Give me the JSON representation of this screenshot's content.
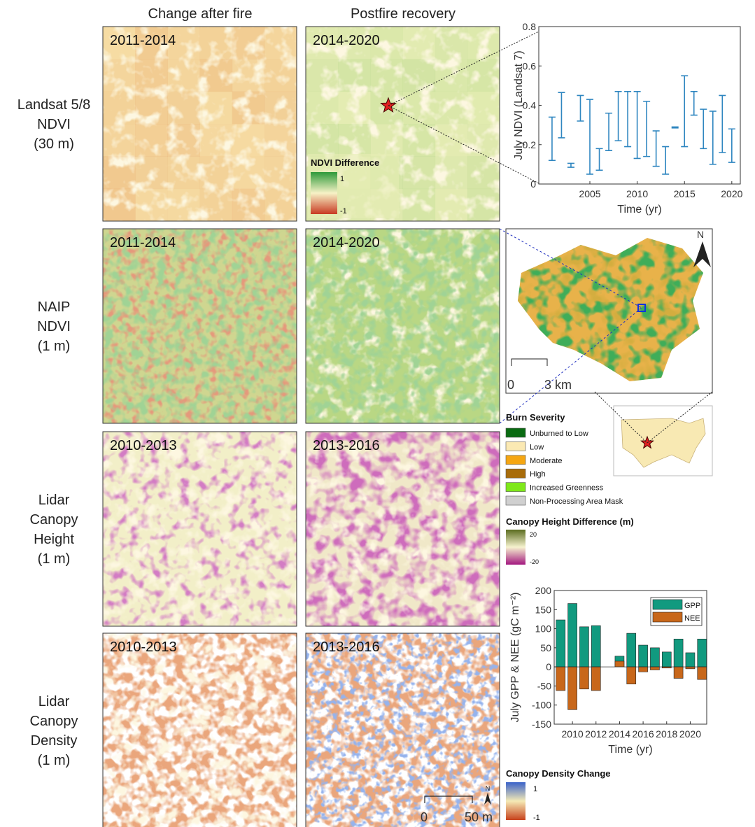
{
  "figure": {
    "column_headers": [
      "Change after fire",
      "Postfire recovery"
    ],
    "row_labels": [
      [
        "Landsat 5/8",
        "NDVI",
        "(30 m)"
      ],
      [
        "NAIP",
        "NDVI",
        "(1 m)"
      ],
      [
        "Lidar",
        "Canopy",
        "Height",
        "(1 m)"
      ],
      [
        "Lidar",
        "Canopy",
        "Density",
        "(1 m)"
      ]
    ],
    "panel_labels": [
      [
        "2011-2014",
        "2014-2020"
      ],
      [
        "2011-2014",
        "2014-2020"
      ],
      [
        "2010-2013",
        "2013-2016"
      ],
      [
        "2010-2013",
        "2013-2016"
      ]
    ],
    "ndvi_legend": {
      "title": "NDVI Difference",
      "max": "1",
      "min": "-1"
    },
    "burn_severity": {
      "title": "Burn Severity",
      "classes": [
        {
          "label": "Unburned to Low",
          "color": "#0a6b12"
        },
        {
          "label": "Low",
          "color": "#fbe9b3"
        },
        {
          "label": "Moderate",
          "color": "#f5a612"
        },
        {
          "label": "High",
          "color": "#a86c0a"
        },
        {
          "label": "Increased Greenness",
          "color": "#7ee81a"
        },
        {
          "label": "Non-Processing Area Mask",
          "color": "#d0d0d0"
        }
      ]
    },
    "canopy_height_legend": {
      "title": "Canopy Height Difference (m)",
      "max": "20",
      "min": "-20"
    },
    "canopy_density_legend": {
      "title": "Canopy Density Change",
      "max": "1",
      "min": "-1"
    },
    "map_scale": {
      "start": "0",
      "end": "3 km",
      "north": "N"
    },
    "panel_scale": {
      "start": "0",
      "end": "50 m",
      "north": "N"
    }
  },
  "chart_data": [
    {
      "type": "range",
      "xlabel": "Time (yr)",
      "ylabel": "July NDVI (Landsat 7)",
      "color": "#2f86c0",
      "x": [
        2001,
        2002,
        2003,
        2004,
        2005,
        2006,
        2007,
        2008,
        2009,
        2010,
        2011,
        2012,
        2013,
        2014,
        2015,
        2016,
        2017,
        2018,
        2019,
        2020
      ],
      "low": [
        0.12,
        0.235,
        0.085,
        0.32,
        0.05,
        0.07,
        0.17,
        0.22,
        0.19,
        0.13,
        0.14,
        0.09,
        0.05,
        0.285,
        0.19,
        0.35,
        0.18,
        0.1,
        0.16,
        0.11
      ],
      "high": [
        0.34,
        0.465,
        0.105,
        0.45,
        0.43,
        0.18,
        0.36,
        0.47,
        0.47,
        0.47,
        0.42,
        0.27,
        0.19,
        0.29,
        0.55,
        0.47,
        0.38,
        0.37,
        0.45,
        0.28
      ],
      "xlim": [
        1999.6,
        2020.9
      ],
      "xticks": [
        2005,
        2010,
        2015,
        2020
      ],
      "ylim": [
        0,
        0.8
      ],
      "yticks": [
        0,
        0.2,
        0.4,
        0.6,
        0.8
      ]
    },
    {
      "type": "bar",
      "xlabel": "Time (yr)",
      "ylabel": "July GPP & NEE (gC m⁻²)",
      "legend": "upper right",
      "x": [
        2009,
        2010,
        2011,
        2012,
        2013,
        2014,
        2015,
        2016,
        2017,
        2018,
        2019,
        2020,
        2021
      ],
      "series": [
        {
          "name": "GPP",
          "color": "#119a7f",
          "values": [
            123,
            166,
            105,
            108,
            null,
            28,
            88,
            57,
            50,
            39,
            73,
            37,
            73
          ]
        },
        {
          "name": "NEE",
          "color": "#c8671a",
          "values": [
            -62,
            -112,
            -58,
            -62,
            null,
            15,
            -45,
            -13,
            -8,
            -3,
            -30,
            -5,
            -33
          ]
        }
      ],
      "xlim": [
        2008.45,
        2021.4
      ],
      "xticks": [
        2010,
        2012,
        2014,
        2016,
        2018,
        2020
      ],
      "ylim": [
        -150,
        200
      ],
      "yticks": [
        -150,
        -100,
        -50,
        0,
        50,
        100,
        150,
        200
      ]
    }
  ]
}
